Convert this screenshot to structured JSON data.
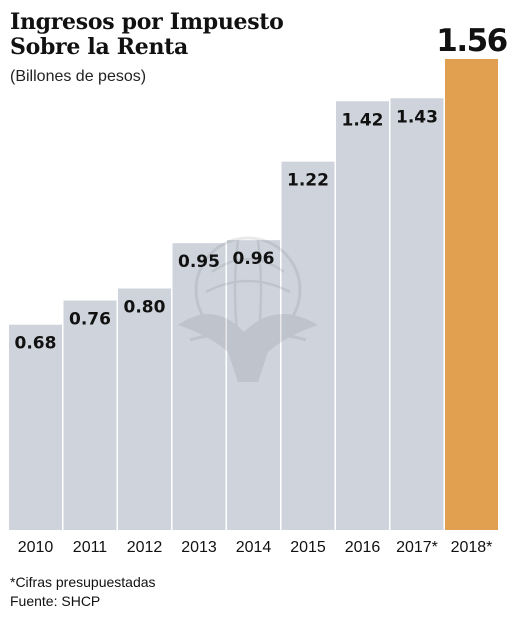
{
  "chart_data": {
    "type": "bar",
    "title": "Ingresos por Impuesto\nSobre la Renta",
    "subtitle": "(Billones de pesos)",
    "categories": [
      "2010",
      "2011",
      "2012",
      "2013",
      "2014",
      "2015",
      "2016",
      "2017*",
      "2018*"
    ],
    "values": [
      0.68,
      0.76,
      0.8,
      0.95,
      0.96,
      1.22,
      1.42,
      1.43,
      1.56
    ],
    "value_labels": [
      "0.68",
      "0.76",
      "0.80",
      "0.95",
      "0.96",
      "1.22",
      "1.42",
      "1.43",
      "1.56"
    ],
    "highlight_index": 8,
    "ylim": [
      0,
      1.56
    ],
    "grid": false,
    "xlabel": "",
    "ylabel": "",
    "colors": {
      "bar": "#cfd4dc",
      "highlight": "#e0a050",
      "text": "#111111"
    }
  },
  "notes": {
    "footnote": "*Cifras presupuestadas",
    "source": "Fuente: SHCP"
  }
}
